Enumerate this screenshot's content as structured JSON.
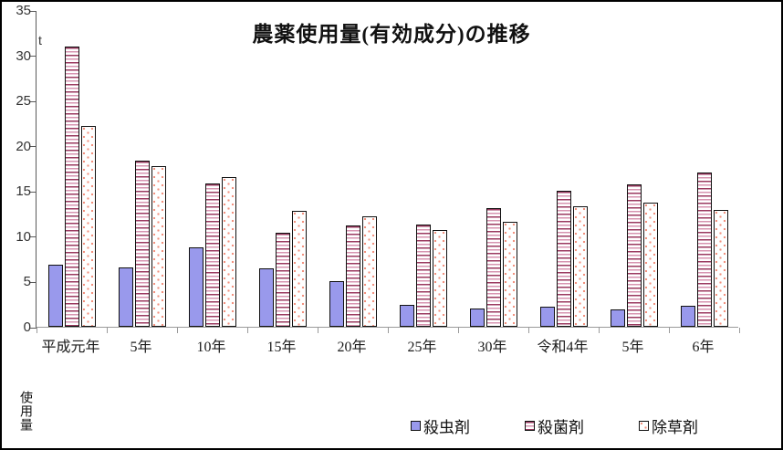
{
  "title": "農薬使用量(有効成分)の推移",
  "unit_label": "t",
  "y_axis_title": "使用量",
  "chart_data": {
    "type": "bar",
    "title": "農薬使用量(有効成分)の推移",
    "ylabel": "使用量",
    "unit": "t",
    "ylim": [
      0,
      35
    ],
    "yticks": [
      0,
      5,
      10,
      15,
      20,
      25,
      30,
      35
    ],
    "grid": false,
    "legend_position": "bottom-right",
    "categories": [
      "平成元年",
      "5年",
      "10年",
      "15年",
      "20年",
      "25年",
      "30年",
      "令和4年",
      "5年",
      "6年"
    ],
    "series": [
      {
        "name": "殺虫剤",
        "pattern": "solid",
        "color": "#9999EC",
        "values": [
          6.9,
          6.6,
          8.8,
          6.5,
          5.0,
          2.4,
          2.0,
          2.2,
          1.9,
          2.3
        ]
      },
      {
        "name": "殺菌剤",
        "pattern": "horizontal-stripes",
        "color": "#9B3A60",
        "values": [
          31.0,
          18.4,
          15.8,
          10.4,
          11.2,
          11.3,
          13.1,
          15.0,
          15.7,
          17.0
        ]
      },
      {
        "name": "除草剤",
        "pattern": "dots",
        "color": "#F2917F",
        "values": [
          22.2,
          17.8,
          16.5,
          12.8,
          12.2,
          10.7,
          11.6,
          13.3,
          13.7,
          12.9
        ]
      }
    ]
  }
}
